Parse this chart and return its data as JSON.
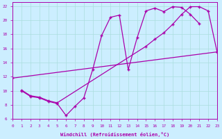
{
  "xlabel": "Windchill (Refroidissement éolien,°C)",
  "bg_color": "#cceeff",
  "grid_color": "#aadddd",
  "line_color": "#aa00aa",
  "xlim": [
    0,
    23
  ],
  "ylim": [
    6,
    22.5
  ],
  "xticks": [
    0,
    1,
    2,
    3,
    4,
    5,
    6,
    7,
    8,
    9,
    10,
    11,
    12,
    13,
    14,
    15,
    16,
    17,
    18,
    19,
    20,
    21,
    22,
    23
  ],
  "yticks": [
    6,
    8,
    10,
    12,
    14,
    16,
    18,
    20,
    22
  ],
  "line1_x": [
    1,
    2,
    3,
    4,
    5,
    6,
    7,
    8,
    9,
    10,
    11,
    12,
    13,
    14,
    15,
    16,
    17,
    18,
    19,
    20,
    21
  ],
  "line1_y": [
    10.0,
    9.2,
    9.0,
    8.5,
    8.2,
    6.5,
    7.8,
    9.0,
    13.0,
    17.8,
    20.4,
    20.7,
    13.0,
    17.5,
    21.3,
    21.7,
    21.2,
    21.9,
    21.8,
    20.8,
    19.5
  ],
  "line2_x": [
    1,
    2,
    3,
    4,
    5,
    15,
    16,
    17,
    18,
    19,
    20,
    21,
    22,
    23
  ],
  "line2_y": [
    10.1,
    9.3,
    9.1,
    8.6,
    8.3,
    16.3,
    17.3,
    18.2,
    19.4,
    20.8,
    21.9,
    21.9,
    21.3,
    15.5
  ],
  "line3_x": [
    0,
    23
  ],
  "line3_y": [
    11.8,
    15.5
  ]
}
